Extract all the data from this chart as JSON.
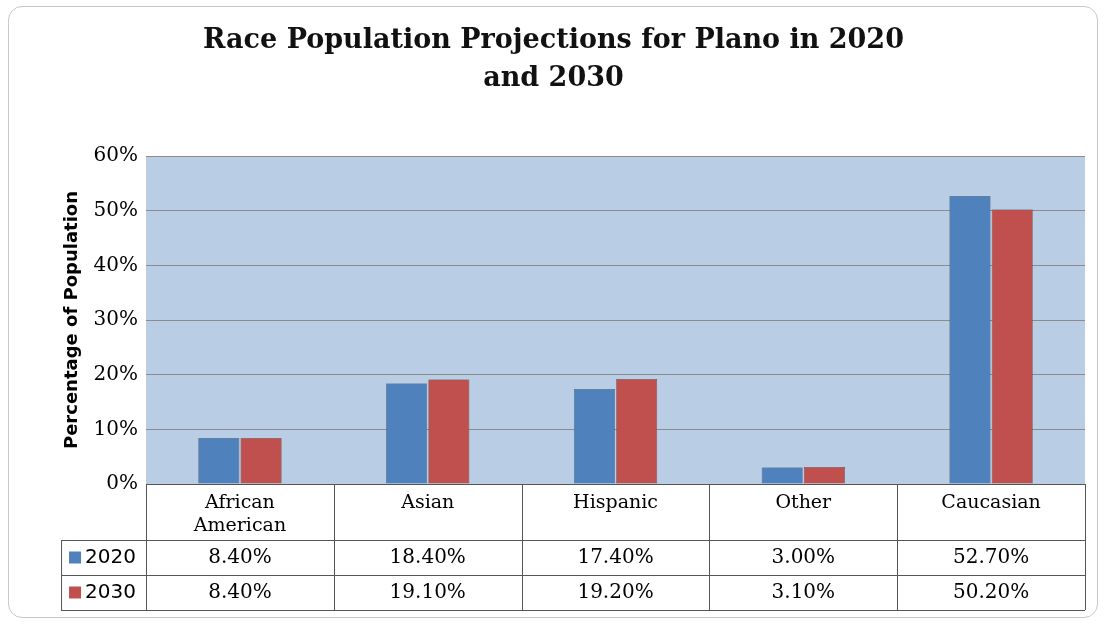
{
  "chart_data": {
    "type": "bar",
    "title": "Race Population Projections for Plano in 2020 and 2030",
    "ylabel": "Percentage of Population",
    "categories": [
      "African American",
      "Asian",
      "Hispanic",
      "Other",
      "Caucasian"
    ],
    "series": [
      {
        "name": "2020",
        "color": "#4f81bd",
        "values": [
          8.4,
          18.4,
          17.4,
          3.0,
          52.7
        ],
        "value_labels": [
          "8.40%",
          "18.40%",
          "17.40%",
          "3.00%",
          "52.70%"
        ]
      },
      {
        "name": "2030",
        "color": "#c0504d",
        "values": [
          8.4,
          19.1,
          19.2,
          3.1,
          50.2
        ],
        "value_labels": [
          "8.40%",
          "19.10%",
          "19.20%",
          "3.10%",
          "50.20%"
        ]
      }
    ],
    "ylim": [
      0,
      60
    ],
    "yticks": [
      {
        "value": 0,
        "label": "0%"
      },
      {
        "value": 10,
        "label": "10%"
      },
      {
        "value": 20,
        "label": "20%"
      },
      {
        "value": 30,
        "label": "30%"
      },
      {
        "value": 40,
        "label": "40%"
      },
      {
        "value": 50,
        "label": "50%"
      },
      {
        "value": 60,
        "label": "60%"
      }
    ],
    "grid": "y",
    "legend": "bottom left"
  }
}
